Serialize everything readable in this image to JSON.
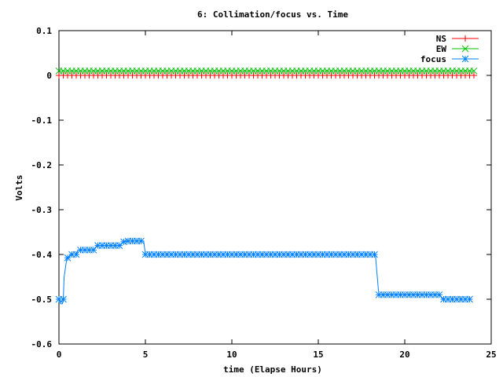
{
  "chart_data": {
    "type": "line",
    "title": "6: Collimation/focus vs. Time",
    "xlabel": "time (Elapse Hours)",
    "ylabel": "Volts",
    "xlim": [
      0,
      25
    ],
    "ylim": [
      -0.6,
      0.1
    ],
    "xticks": [
      0,
      5,
      10,
      15,
      20,
      25
    ],
    "yticks": [
      0.1,
      0,
      -0.1,
      -0.2,
      -0.3,
      -0.4,
      -0.5,
      -0.6
    ],
    "xtick_labels": [
      "0",
      "5",
      "10",
      "15",
      "20",
      "25"
    ],
    "ytick_labels": [
      "0.1",
      "0",
      "-0.1",
      "-0.2",
      "-0.3",
      "-0.4",
      "-0.5",
      "-0.6"
    ],
    "grid": false,
    "legend_position": "top-right",
    "series": [
      {
        "name": "NS",
        "color": "#ff0000",
        "marker": "plus",
        "x": [
          0,
          24
        ],
        "y": [
          0,
          0
        ],
        "step": 0.25
      },
      {
        "name": "EW",
        "color": "#00c000",
        "marker": "x",
        "x": [
          0,
          24
        ],
        "y": [
          0.01,
          0.01
        ],
        "step": 0.25
      },
      {
        "name": "focus",
        "color": "#0080ff",
        "marker": "star",
        "x": [
          0,
          0.1,
          0.2,
          0.25,
          0.3,
          0.45,
          0.55,
          0.7,
          1.0,
          1.1,
          2.0,
          2.2,
          3.5,
          3.8,
          4.9,
          5.0,
          18.3,
          18.5,
          22.0,
          22.2,
          23.8
        ],
        "y": [
          -0.5,
          -0.51,
          -0.51,
          -0.5,
          -0.45,
          -0.41,
          -0.405,
          -0.4,
          -0.4,
          -0.39,
          -0.39,
          -0.38,
          -0.38,
          -0.37,
          -0.37,
          -0.4,
          -0.4,
          -0.49,
          -0.49,
          -0.5,
          -0.5
        ],
        "step": 0.25
      }
    ]
  }
}
